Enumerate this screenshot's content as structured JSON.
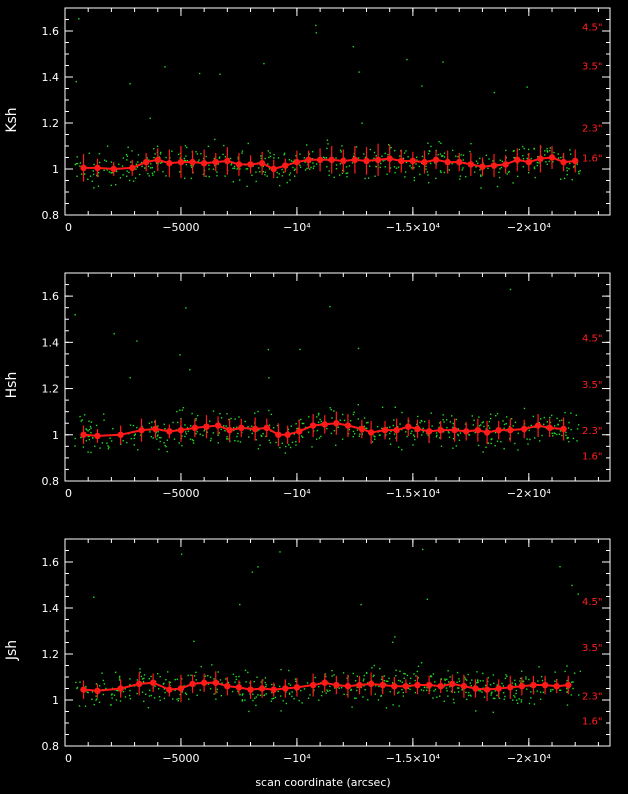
{
  "figure": {
    "x_axis_label": "scan coordinate (arcsec)",
    "colors": {
      "background": "#000000",
      "axes": "#ffffff",
      "scatter": "#22dd22",
      "binned": "#ff1a1a",
      "seeing_labels": "#ff2020"
    }
  },
  "chart_data": [
    {
      "type": "scatter",
      "panel": "Ksh",
      "ylabel": "Ksh",
      "xlim": [
        0,
        -23500
      ],
      "ylim": [
        0.8,
        1.7
      ],
      "x_ticks": [
        0,
        -5000,
        -10000,
        -15000,
        -20000
      ],
      "x_tick_labels": [
        "0",
        "−5000",
        "−10⁴",
        "−1.5×10⁴",
        "−2×10⁴"
      ],
      "y_ticks": [
        0.8,
        1,
        1.2,
        1.4,
        1.6
      ],
      "y_tick_labels": [
        "0.8",
        "1",
        "1.2",
        "1.4",
        "1.6"
      ],
      "seeing_labels": [
        {
          "y": 1.62,
          "text": "4.5\""
        },
        {
          "y": 1.45,
          "text": "3.5\""
        },
        {
          "y": 1.18,
          "text": "2.3\""
        },
        {
          "y": 1.05,
          "text": "1.6\""
        }
      ],
      "binned": {
        "x": [
          -800,
          -1400,
          -2100,
          -2900,
          -3500,
          -4000,
          -4500,
          -5000,
          -5500,
          -6000,
          -6500,
          -7000,
          -7500,
          -8000,
          -8500,
          -9000,
          -9500,
          -10000,
          -10500,
          -11000,
          -11500,
          -12000,
          -12500,
          -13000,
          -13500,
          -14000,
          -14500,
          -15000,
          -15500,
          -16000,
          -16500,
          -17000,
          -17500,
          -18000,
          -18500,
          -19000,
          -19500,
          -20000,
          -20500,
          -21000,
          -21500,
          -22000
        ],
        "y": [
          1.005,
          1.005,
          1.0,
          1.005,
          1.03,
          1.04,
          1.025,
          1.03,
          1.03,
          1.025,
          1.03,
          1.035,
          1.02,
          1.02,
          1.025,
          1.0,
          1.015,
          1.03,
          1.04,
          1.04,
          1.04,
          1.035,
          1.04,
          1.035,
          1.04,
          1.045,
          1.035,
          1.035,
          1.03,
          1.04,
          1.03,
          1.03,
          1.02,
          1.01,
          1.015,
          1.02,
          1.04,
          1.03,
          1.045,
          1.05,
          1.03,
          1.035
        ],
        "err": [
          0.06,
          0.04,
          0.03,
          0.035,
          0.04,
          0.05,
          0.06,
          0.07,
          0.05,
          0.06,
          0.04,
          0.06,
          0.05,
          0.04,
          0.05,
          0.04,
          0.03,
          0.05,
          0.04,
          0.05,
          0.06,
          0.05,
          0.06,
          0.06,
          0.07,
          0.06,
          0.05,
          0.04,
          0.05,
          0.04,
          0.05,
          0.04,
          0.05,
          0.04,
          0.05,
          0.04,
          0.05,
          0.04,
          0.06,
          0.05,
          0.04,
          0.05
        ]
      }
    },
    {
      "type": "scatter",
      "panel": "Hsh",
      "ylabel": "Hsh",
      "xlim": [
        0,
        -23500
      ],
      "ylim": [
        0.8,
        1.7
      ],
      "x_ticks": [
        0,
        -5000,
        -10000,
        -15000,
        -20000
      ],
      "x_tick_labels": [
        "0",
        "−5000",
        "−10⁴",
        "−1.5×10⁴",
        "−2×10⁴"
      ],
      "y_ticks": [
        0.8,
        1,
        1.2,
        1.4,
        1.6
      ],
      "y_tick_labels": [
        "0.8",
        "1",
        "1.2",
        "1.4",
        "1.6"
      ],
      "seeing_labels": [
        {
          "y": 1.42,
          "text": "4.5\""
        },
        {
          "y": 1.22,
          "text": "3.5\""
        },
        {
          "y": 1.02,
          "text": "2.3\""
        },
        {
          "y": 0.91,
          "text": "1.6\""
        }
      ],
      "binned": {
        "x": [
          -800,
          -1400,
          -2400,
          -3300,
          -3900,
          -4500,
          -5000,
          -5600,
          -6100,
          -6600,
          -7100,
          -7600,
          -8200,
          -8700,
          -9200,
          -9600,
          -10100,
          -10700,
          -11200,
          -11700,
          -12200,
          -12800,
          -13200,
          -13800,
          -14300,
          -14800,
          -15200,
          -15700,
          -16200,
          -16800,
          -17300,
          -17800,
          -18200,
          -18700,
          -19200,
          -19800,
          -20400,
          -20900,
          -21500
        ],
        "y": [
          1.0,
          0.995,
          1.0,
          1.02,
          1.025,
          1.015,
          1.02,
          1.03,
          1.035,
          1.04,
          1.02,
          1.03,
          1.025,
          1.03,
          1.0,
          1.0,
          1.015,
          1.04,
          1.045,
          1.05,
          1.04,
          1.025,
          1.01,
          1.02,
          1.02,
          1.035,
          1.025,
          1.015,
          1.02,
          1.02,
          1.015,
          1.02,
          1.01,
          1.02,
          1.02,
          1.025,
          1.04,
          1.03,
          1.025
        ],
        "err": [
          0.04,
          0.03,
          0.04,
          0.05,
          0.04,
          0.03,
          0.05,
          0.04,
          0.05,
          0.04,
          0.05,
          0.04,
          0.05,
          0.04,
          0.05,
          0.04,
          0.05,
          0.05,
          0.04,
          0.05,
          0.05,
          0.04,
          0.05,
          0.04,
          0.05,
          0.04,
          0.04,
          0.05,
          0.04,
          0.05,
          0.04,
          0.05,
          0.05,
          0.04,
          0.05,
          0.04,
          0.05,
          0.04,
          0.05
        ]
      }
    },
    {
      "type": "scatter",
      "panel": "Jsh",
      "ylabel": "Jsh",
      "xlim": [
        0,
        -23500
      ],
      "ylim": [
        0.8,
        1.7
      ],
      "x_ticks": [
        0,
        -5000,
        -10000,
        -15000,
        -20000
      ],
      "x_tick_labels": [
        "0",
        "−5000",
        "−10⁴",
        "−1.5×10⁴",
        "−2×10⁴"
      ],
      "y_ticks": [
        0.8,
        1,
        1.2,
        1.4,
        1.6
      ],
      "y_tick_labels": [
        "0.8",
        "1",
        "1.2",
        "1.4",
        "1.6"
      ],
      "seeing_labels": [
        {
          "y": 1.43,
          "text": "4.5\""
        },
        {
          "y": 1.23,
          "text": "3.5\""
        },
        {
          "y": 1.02,
          "text": "2.3\""
        },
        {
          "y": 0.91,
          "text": "1.6\""
        }
      ],
      "binned": {
        "x": [
          -800,
          -1400,
          -2400,
          -3200,
          -3800,
          -4500,
          -5000,
          -5500,
          -6000,
          -6500,
          -7000,
          -7500,
          -8000,
          -8500,
          -9000,
          -9500,
          -10000,
          -10700,
          -11200,
          -11700,
          -12200,
          -12700,
          -13200,
          -13700,
          -14200,
          -14700,
          -15200,
          -15700,
          -16200,
          -16700,
          -17200,
          -17700,
          -18200,
          -18700,
          -19200,
          -19700,
          -20200,
          -20700,
          -21200,
          -21700
        ],
        "y": [
          1.045,
          1.04,
          1.05,
          1.07,
          1.075,
          1.045,
          1.05,
          1.07,
          1.075,
          1.075,
          1.06,
          1.055,
          1.045,
          1.05,
          1.045,
          1.05,
          1.055,
          1.065,
          1.075,
          1.065,
          1.06,
          1.065,
          1.07,
          1.065,
          1.06,
          1.06,
          1.065,
          1.065,
          1.06,
          1.07,
          1.06,
          1.05,
          1.045,
          1.05,
          1.055,
          1.06,
          1.065,
          1.065,
          1.06,
          1.065
        ],
        "err": [
          0.04,
          0.03,
          0.04,
          0.05,
          0.04,
          0.03,
          0.06,
          0.04,
          0.04,
          0.05,
          0.04,
          0.03,
          0.04,
          0.04,
          0.03,
          0.04,
          0.04,
          0.05,
          0.04,
          0.04,
          0.05,
          0.04,
          0.05,
          0.04,
          0.04,
          0.03,
          0.04,
          0.04,
          0.03,
          0.04,
          0.05,
          0.04,
          0.05,
          0.04,
          0.05,
          0.04,
          0.04,
          0.04,
          0.03,
          0.04
        ]
      }
    }
  ]
}
